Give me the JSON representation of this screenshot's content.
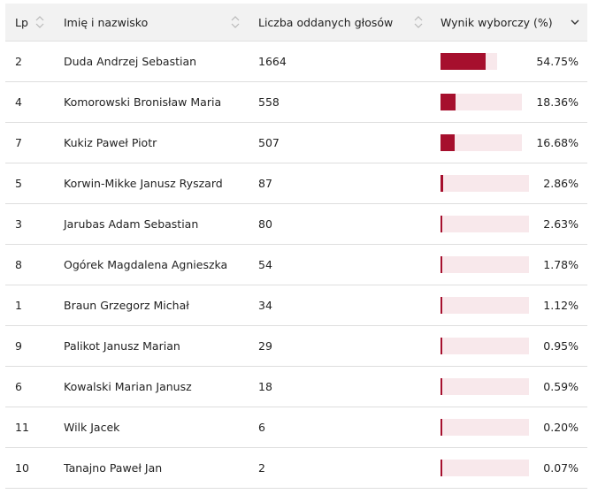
{
  "header": {
    "lp": "Lp",
    "name": "Imię i nazwisko",
    "votes": "Liczba oddanych głosów",
    "result": "Wynik wyborczy (%)"
  },
  "colors": {
    "bar": "#a60f2d",
    "track": "#f8e8eb"
  },
  "rows": [
    {
      "lp": "2",
      "name": "Duda Andrzej Sebastian",
      "votes": "1664",
      "pct": "54.75%",
      "share": 54.75
    },
    {
      "lp": "4",
      "name": "Komorowski Bronisław Maria",
      "votes": "558",
      "pct": "18.36%",
      "share": 18.36
    },
    {
      "lp": "7",
      "name": "Kukiz Paweł Piotr",
      "votes": "507",
      "pct": "16.68%",
      "share": 16.68
    },
    {
      "lp": "5",
      "name": "Korwin-Mikke Janusz Ryszard",
      "votes": "87",
      "pct": "2.86%",
      "share": 2.86
    },
    {
      "lp": "3",
      "name": "Jarubas Adam Sebastian",
      "votes": "80",
      "pct": "2.63%",
      "share": 2.63
    },
    {
      "lp": "8",
      "name": "Ogórek Magdalena Agnieszka",
      "votes": "54",
      "pct": "1.78%",
      "share": 1.78
    },
    {
      "lp": "1",
      "name": "Braun Grzegorz Michał",
      "votes": "34",
      "pct": "1.12%",
      "share": 1.12
    },
    {
      "lp": "9",
      "name": "Palikot Janusz Marian",
      "votes": "29",
      "pct": "0.95%",
      "share": 0.95
    },
    {
      "lp": "6",
      "name": "Kowalski Marian Janusz",
      "votes": "18",
      "pct": "0.59%",
      "share": 0.59
    },
    {
      "lp": "11",
      "name": "Wilk Jacek",
      "votes": "6",
      "pct": "0.20%",
      "share": 0.2
    },
    {
      "lp": "10",
      "name": "Tanajno Paweł Jan",
      "votes": "2",
      "pct": "0.07%",
      "share": 0.07
    }
  ]
}
